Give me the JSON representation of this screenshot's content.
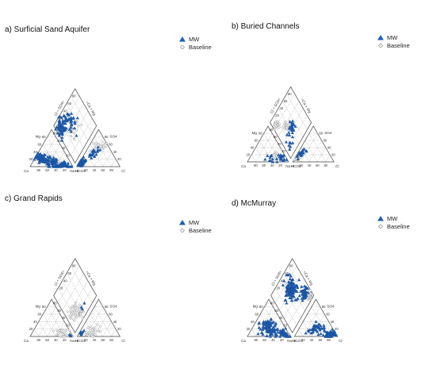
{
  "chart_data": [
    {
      "type": "scatter",
      "title": "a) Surficial Sand Aquifer",
      "legend": {
        "placement": "top-right",
        "entries": [
          "MW",
          "Baseline"
        ]
      },
      "labels": {
        "ca": "Ca",
        "mg": "Mg",
        "nak": "Na+K",
        "hco3": "HCO3",
        "cl": "Cl",
        "so4": "SO4",
        "clso4": "Cl + SO4=",
        "camg": "=Ca + Mg"
      },
      "ticks": {
        "left": [
          "80",
          "60",
          "40",
          "20"
        ],
        "right": [
          "20",
          "40",
          "60",
          "80"
        ],
        "diamond": [
          "80",
          "60",
          "40",
          "20"
        ]
      },
      "series": [
        {
          "name": "MW",
          "symbol": "triangle",
          "color": "#1f5fb5",
          "clusters": [
            {
              "tri": "cation",
              "ca": 62,
              "mg": 22,
              "spread": 12,
              "n": 70
            },
            {
              "tri": "cation",
              "ca": 38,
              "mg": 8,
              "spread": 14,
              "n": 45
            },
            {
              "tri": "cation",
              "ca": 15,
              "mg": 4,
              "spread": 10,
              "n": 25
            },
            {
              "tri": "anion",
              "cl": 4,
              "so4": 10,
              "spread": 8,
              "n": 70
            },
            {
              "tri": "anion",
              "cl": 20,
              "so4": 35,
              "spread": 12,
              "n": 22
            },
            {
              "tri": "diamond",
              "clso4": 18,
              "camg": 82,
              "spread": 14,
              "n": 60
            },
            {
              "tri": "diamond",
              "clso4": 45,
              "camg": 70,
              "spread": 15,
              "n": 35
            }
          ]
        },
        {
          "name": "Baseline",
          "symbol": "diamond",
          "color": "#8a8a8a",
          "clusters": [
            {
              "tri": "cation",
              "ca": 45,
              "mg": 15,
              "spread": 16,
              "n": 40
            },
            {
              "tri": "anion",
              "cl": 5,
              "so4": 8,
              "spread": 6,
              "n": 60
            },
            {
              "tri": "anion",
              "cl": 25,
              "so4": 55,
              "spread": 14,
              "n": 25
            },
            {
              "tri": "diamond",
              "clso4": 10,
              "camg": 85,
              "spread": 8,
              "n": 55
            },
            {
              "tri": "diamond",
              "clso4": 40,
              "camg": 55,
              "spread": 16,
              "n": 30
            }
          ]
        }
      ]
    },
    {
      "type": "scatter",
      "title": "b) Buried Channels",
      "legend": {
        "placement": "top-right",
        "entries": [
          "MW",
          "Baseline"
        ]
      },
      "labels": {
        "ca": "Ca",
        "mg": "Mg",
        "nak": "Na+K",
        "hco3": "HCO3",
        "cl": "Cl",
        "so4": "SO4",
        "clso4": "Cl + SO4=",
        "camg": "=Ca + Mg"
      },
      "ticks": {
        "left": [
          "80",
          "60",
          "40",
          "20"
        ],
        "right": [
          "20",
          "40",
          "60",
          "80"
        ],
        "diamond": [
          "80",
          "60",
          "40",
          "20"
        ]
      },
      "series": [
        {
          "name": "MW",
          "symbol": "triangle",
          "color": "#1f5fb5",
          "clusters": [
            {
              "tri": "cation",
              "ca": 12,
              "mg": 12,
              "spread": 10,
              "n": 18
            },
            {
              "tri": "cation",
              "ca": 40,
              "mg": 10,
              "spread": 14,
              "n": 10
            },
            {
              "tri": "anion",
              "cl": 10,
              "so4": 25,
              "spread": 10,
              "n": 20
            },
            {
              "tri": "diamond",
              "clso4": 45,
              "camg": 40,
              "spread": 12,
              "n": 25
            },
            {
              "tri": "diamond",
              "clso4": 20,
              "camg": 25,
              "spread": 10,
              "n": 8
            }
          ]
        },
        {
          "name": "Baseline",
          "symbol": "diamond",
          "color": "#8a8a8a",
          "clusters": [
            {
              "tri": "cation",
              "ca": 20,
              "mg": 15,
              "spread": 12,
              "n": 18
            },
            {
              "tri": "anion",
              "cl": 5,
              "so4": 10,
              "spread": 6,
              "n": 20
            },
            {
              "tri": "diamond",
              "clso4": 12,
              "camg": 80,
              "spread": 8,
              "n": 30
            },
            {
              "tri": "diamond",
              "clso4": 35,
              "camg": 55,
              "spread": 14,
              "n": 22
            }
          ]
        }
      ]
    },
    {
      "type": "scatter",
      "title": "c) Grand Rapids",
      "legend": {
        "placement": "top-right",
        "entries": [
          "MW",
          "Baseline"
        ]
      },
      "labels": {
        "ca": "Ca",
        "mg": "Mg",
        "nak": "Na+K",
        "hco3": "HCO3",
        "cl": "Cl",
        "so4": "SO4",
        "clso4": "Cl + SO4=",
        "camg": "=Ca + Mg"
      },
      "ticks": {
        "left": [
          "80",
          "60",
          "40",
          "20"
        ],
        "right": [
          "20",
          "40",
          "60",
          "80"
        ],
        "diamond": [
          "80",
          "60",
          "40",
          "20"
        ]
      },
      "series": [
        {
          "name": "MW",
          "symbol": "triangle",
          "color": "#1f5fb5",
          "clusters": [
            {
              "tri": "cation",
              "ca": 4,
              "mg": 3,
              "spread": 4,
              "n": 4
            },
            {
              "tri": "anion",
              "cl": 5,
              "so4": 8,
              "spread": 6,
              "n": 8
            },
            {
              "tri": "diamond",
              "clso4": 55,
              "camg": 15,
              "spread": 8,
              "n": 3
            }
          ]
        },
        {
          "name": "Baseline",
          "symbol": "diamond",
          "color": "#8a8a8a",
          "clusters": [
            {
              "tri": "cation",
              "ca": 20,
              "mg": 8,
              "spread": 14,
              "n": 40
            },
            {
              "tri": "anion",
              "cl": 25,
              "so4": 10,
              "spread": 16,
              "n": 35
            },
            {
              "tri": "diamond",
              "clso4": 25,
              "camg": 30,
              "spread": 14,
              "n": 40
            },
            {
              "tri": "diamond",
              "clso4": 40,
              "camg": 15,
              "spread": 10,
              "n": 20
            }
          ]
        }
      ]
    },
    {
      "type": "scatter",
      "title": "d) McMurray",
      "legend": {
        "placement": "top-right",
        "entries": [
          "MW",
          "Baseline"
        ]
      },
      "labels": {
        "ca": "Ca",
        "mg": "Mg",
        "nak": "Na+K",
        "hco3": "HCO3",
        "cl": "Cl",
        "so4": "SO4",
        "clso4": "Cl + SO4=",
        "camg": "=Ca + Mg"
      },
      "ticks": {
        "left": [
          "80",
          "60",
          "40",
          "20"
        ],
        "right": [
          "20",
          "40",
          "60",
          "80"
        ],
        "diamond": [
          "80",
          "60",
          "40",
          "20"
        ]
      },
      "series": [
        {
          "name": "MW",
          "symbol": "triangle",
          "color": "#1f5fb5",
          "clusters": [
            {
              "tri": "cation",
              "ca": 40,
              "mg": 20,
              "spread": 20,
              "n": 90
            },
            {
              "tri": "cation",
              "ca": 10,
              "mg": 8,
              "spread": 8,
              "n": 30
            },
            {
              "tri": "anion",
              "cl": 80,
              "so4": 5,
              "spread": 10,
              "n": 60
            },
            {
              "tri": "anion",
              "cl": 40,
              "so4": 20,
              "spread": 15,
              "n": 40
            },
            {
              "tri": "diamond",
              "clso4": 55,
              "camg": 60,
              "spread": 18,
              "n": 110
            },
            {
              "tri": "diamond",
              "clso4": 82,
              "camg": 25,
              "spread": 10,
              "n": 40
            }
          ]
        },
        {
          "name": "Baseline",
          "symbol": "diamond",
          "color": "#8a8a8a",
          "clusters": [
            {
              "tri": "cation",
              "ca": 5,
              "mg": 4,
              "spread": 5,
              "n": 40
            },
            {
              "tri": "anion",
              "cl": 85,
              "so4": 3,
              "spread": 6,
              "n": 45
            },
            {
              "tri": "diamond",
              "clso4": 90,
              "camg": 10,
              "spread": 6,
              "n": 40
            },
            {
              "tri": "diamond",
              "clso4": 50,
              "camg": 70,
              "spread": 14,
              "n": 20
            }
          ]
        }
      ]
    }
  ]
}
